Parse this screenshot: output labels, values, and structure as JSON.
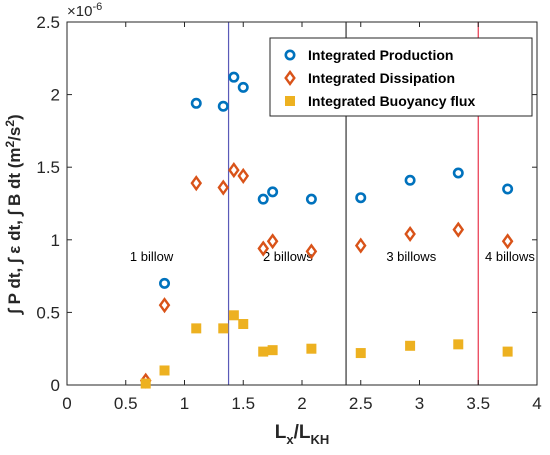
{
  "chart_data": {
    "type": "scatter",
    "x": [
      0.67,
      0.83,
      1.1,
      1.33,
      1.42,
      1.5,
      1.67,
      1.75,
      2.08,
      2.5,
      2.92,
      3.33,
      3.75
    ],
    "series": [
      {
        "name": "Integrated Production",
        "color": "#0072BD",
        "marker": "circle",
        "values": [
          null,
          0.7,
          1.94,
          1.92,
          2.12,
          2.05,
          1.28,
          1.33,
          1.28,
          1.29,
          1.41,
          1.46,
          1.35
        ]
      },
      {
        "name": "Integrated Dissipation",
        "color": "#D95319",
        "marker": "diamond",
        "values": [
          0.03,
          0.55,
          1.39,
          1.36,
          1.48,
          1.44,
          0.94,
          0.99,
          0.92,
          0.96,
          1.04,
          1.07,
          0.99
        ]
      },
      {
        "name": "Integrated Buoyancy flux",
        "color": "#EDB120",
        "marker": "square",
        "values": [
          0.01,
          0.1,
          0.39,
          0.39,
          0.48,
          0.42,
          0.23,
          0.24,
          0.25,
          0.22,
          0.27,
          0.28,
          0.23
        ]
      }
    ],
    "xlim": [
      0,
      4
    ],
    "ylim": [
      0,
      2.5
    ],
    "xticks": [
      "0",
      "0.5",
      "1",
      "1.5",
      "2",
      "2.5",
      "3",
      "3.5",
      "4"
    ],
    "yticks": [
      "0",
      "0.5",
      "1",
      "1.5",
      "2",
      "2.5"
    ],
    "xlabel": {
      "base": "L",
      "sub1": "x",
      "mid": "/L",
      "sub2": "KH"
    },
    "ylabel": {
      "main": "∫ P dt, ∫ ε dt, ∫ B dt  (m",
      "sup": "2",
      "mid": "/s",
      "sup2": "2",
      "end": ")"
    },
    "y_multiplier": {
      "base": "×10",
      "exp": "-6"
    },
    "vlines": [
      {
        "x": 1.375,
        "color": "#5a5ab8"
      },
      {
        "x": 2.375,
        "color": "#333333"
      },
      {
        "x": 3.5,
        "color": "#e8334a"
      }
    ],
    "annotations": [
      {
        "text": "1 billow",
        "x": 0.72,
        "y": 0.8
      },
      {
        "text": "2 billows",
        "x": 1.88,
        "y": 0.8
      },
      {
        "text": "3 billows",
        "x": 2.93,
        "y": 0.8
      },
      {
        "text": "4 billows",
        "x": 3.77,
        "y": 0.8
      }
    ],
    "legend_position": "top-right",
    "grid": false
  }
}
